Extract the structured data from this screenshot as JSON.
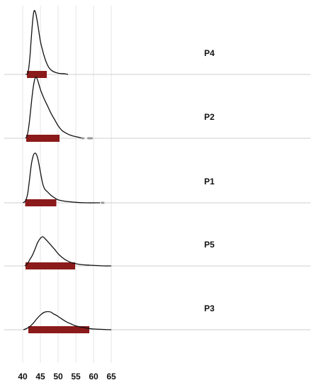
{
  "chart_data": {
    "type": "ridgeline",
    "xlim": [
      39,
      66
    ],
    "x_ticks": [
      40,
      45,
      50,
      55,
      60,
      65
    ],
    "grid": true,
    "colors": {
      "hdi_bar": "#8b1a1a",
      "curve": "#111111",
      "grid": "#e6e6e6",
      "baseline": "#cfcfcf",
      "outlier": "#9a9a9a"
    },
    "series": [
      {
        "name": "P4",
        "density": [
          [
            40.8,
            0
          ],
          [
            41.5,
            0.03
          ],
          [
            42.0,
            0.25
          ],
          [
            42.4,
            0.55
          ],
          [
            42.8,
            0.83
          ],
          [
            43.1,
            0.97
          ],
          [
            43.4,
            1.0
          ],
          [
            43.8,
            0.93
          ],
          [
            44.3,
            0.77
          ],
          [
            45.0,
            0.52
          ],
          [
            45.8,
            0.34
          ],
          [
            46.6,
            0.2
          ],
          [
            47.5,
            0.1
          ],
          [
            48.5,
            0.05
          ],
          [
            50.0,
            0.02
          ],
          [
            52.0,
            0.01
          ],
          [
            52.8,
            0.0
          ]
        ],
        "interval": [
          41.2,
          46.8
        ],
        "outliers": []
      },
      {
        "name": "P2",
        "density": [
          [
            40.8,
            0
          ],
          [
            41.3,
            0.05
          ],
          [
            41.8,
            0.22
          ],
          [
            42.3,
            0.48
          ],
          [
            42.8,
            0.74
          ],
          [
            43.3,
            0.92
          ],
          [
            43.7,
            0.98
          ],
          [
            44.1,
            0.95
          ],
          [
            44.6,
            0.86
          ],
          [
            45.2,
            0.75
          ],
          [
            46.0,
            0.64
          ],
          [
            47.0,
            0.52
          ],
          [
            48.0,
            0.4
          ],
          [
            49.0,
            0.3
          ],
          [
            50.0,
            0.2
          ],
          [
            51.0,
            0.13
          ],
          [
            52.0,
            0.09
          ],
          [
            53.0,
            0.06
          ],
          [
            54.0,
            0.04
          ],
          [
            55.5,
            0.02
          ],
          [
            57.0,
            0.0
          ]
        ],
        "interval": [
          41.0,
          50.4
        ],
        "outliers": [
          [
            56.8,
            57.1
          ],
          [
            58.5,
            59.5
          ]
        ]
      },
      {
        "name": "P1",
        "density": [
          [
            40.1,
            0
          ],
          [
            40.8,
            0.04
          ],
          [
            41.4,
            0.18
          ],
          [
            41.9,
            0.45
          ],
          [
            42.4,
            0.75
          ],
          [
            42.9,
            0.93
          ],
          [
            43.4,
            1.0
          ],
          [
            43.9,
            0.97
          ],
          [
            44.4,
            0.85
          ],
          [
            45.0,
            0.62
          ],
          [
            45.6,
            0.4
          ],
          [
            46.2,
            0.28
          ],
          [
            47.0,
            0.22
          ],
          [
            48.0,
            0.15
          ],
          [
            49.0,
            0.1
          ],
          [
            50.0,
            0.06
          ],
          [
            52.0,
            0.03
          ],
          [
            55.0,
            0.01
          ],
          [
            58.0,
            0.0
          ],
          [
            61.8,
            0.0
          ]
        ],
        "interval": [
          40.7,
          49.5
        ],
        "outliers": [
          [
            62.3,
            62.8
          ]
        ]
      },
      {
        "name": "P5",
        "density": [
          [
            40.6,
            0
          ],
          [
            41.3,
            0.06
          ],
          [
            42.0,
            0.17
          ],
          [
            42.8,
            0.3
          ],
          [
            43.5,
            0.46
          ],
          [
            44.2,
            0.63
          ],
          [
            45.0,
            0.75
          ],
          [
            45.7,
            0.79
          ],
          [
            46.3,
            0.74
          ],
          [
            47.0,
            0.67
          ],
          [
            48.0,
            0.56
          ],
          [
            49.0,
            0.45
          ],
          [
            50.0,
            0.33
          ],
          [
            51.0,
            0.24
          ],
          [
            52.0,
            0.17
          ],
          [
            53.0,
            0.12
          ],
          [
            54.0,
            0.08
          ],
          [
            55.5,
            0.05
          ],
          [
            57.0,
            0.03
          ],
          [
            59.0,
            0.02
          ],
          [
            61.0,
            0.01
          ],
          [
            63.0,
            0.0
          ],
          [
            65.0,
            0.0
          ]
        ],
        "interval": [
          40.8,
          54.8
        ],
        "outliers": []
      },
      {
        "name": "P3",
        "density": [
          [
            40.2,
            0
          ],
          [
            41.0,
            0.04
          ],
          [
            42.0,
            0.12
          ],
          [
            43.0,
            0.25
          ],
          [
            44.0,
            0.42
          ],
          [
            45.0,
            0.56
          ],
          [
            46.0,
            0.66
          ],
          [
            47.0,
            0.69
          ],
          [
            48.0,
            0.67
          ],
          [
            48.6,
            0.61
          ],
          [
            49.5,
            0.55
          ],
          [
            50.5,
            0.46
          ],
          [
            51.5,
            0.37
          ],
          [
            52.5,
            0.29
          ],
          [
            53.5,
            0.23
          ],
          [
            54.5,
            0.17
          ],
          [
            55.5,
            0.13
          ],
          [
            56.5,
            0.1
          ],
          [
            57.5,
            0.08
          ],
          [
            58.5,
            0.05
          ],
          [
            60.0,
            0.03
          ],
          [
            61.5,
            0.02
          ],
          [
            63.0,
            0.01
          ],
          [
            65.0,
            0.0
          ]
        ],
        "interval": [
          41.6,
          58.8
        ],
        "outliers": []
      }
    ]
  }
}
